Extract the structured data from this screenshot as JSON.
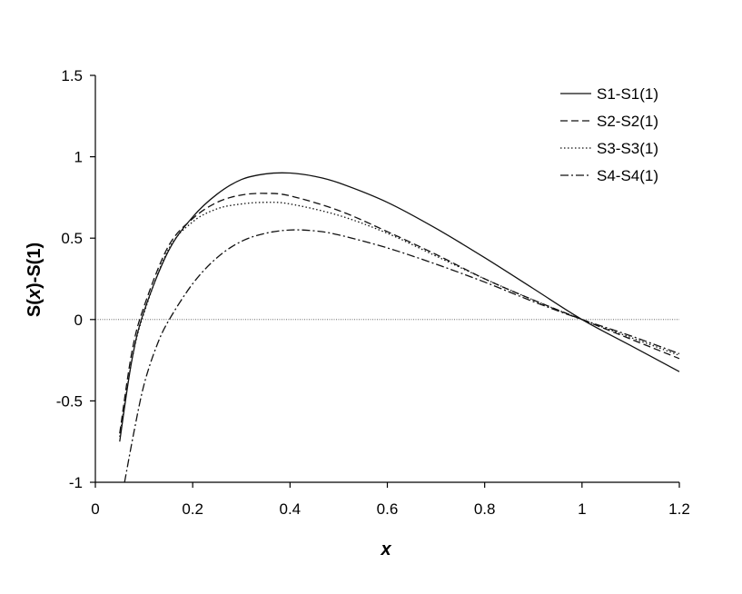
{
  "chart_data": {
    "type": "line",
    "title": "",
    "xlabel": "x",
    "ylabel_parts": [
      "S(",
      "x",
      ")-S(1)"
    ],
    "xlim": [
      0,
      1.2
    ],
    "ylim": [
      -1,
      1.5
    ],
    "x_ticks": [
      "0",
      "0.2",
      "0.4",
      "0.6",
      "0.8",
      "1",
      "1.2"
    ],
    "y_ticks": [
      "-1",
      "-0.5",
      "0",
      "0.5",
      "1",
      "1.5"
    ],
    "grid": false,
    "reference_line_y": 0,
    "legend_position": "top-right",
    "series": [
      {
        "name": "S1-S1(1)",
        "dash": "solid",
        "x": [
          0.05,
          0.075,
          0.1,
          0.15,
          0.2,
          0.25,
          0.3,
          0.35,
          0.4,
          0.45,
          0.5,
          0.6,
          0.7,
          0.8,
          0.9,
          1.0,
          1.1,
          1.2
        ],
        "y": [
          -0.75,
          -0.25,
          0.05,
          0.42,
          0.63,
          0.77,
          0.86,
          0.895,
          0.9,
          0.88,
          0.84,
          0.72,
          0.56,
          0.38,
          0.19,
          0.0,
          -0.16,
          -0.32
        ]
      },
      {
        "name": "S2-S2(1)",
        "dash": "dashed",
        "x": [
          0.05,
          0.075,
          0.1,
          0.15,
          0.2,
          0.25,
          0.3,
          0.35,
          0.4,
          0.5,
          0.6,
          0.7,
          0.8,
          0.9,
          1.0,
          1.1,
          1.2
        ],
        "y": [
          -0.7,
          -0.2,
          0.08,
          0.45,
          0.62,
          0.72,
          0.765,
          0.775,
          0.76,
          0.67,
          0.54,
          0.4,
          0.25,
          0.12,
          0.0,
          -0.12,
          -0.24
        ]
      },
      {
        "name": "S3-S3(1)",
        "dash": "dotted",
        "x": [
          0.05,
          0.075,
          0.1,
          0.15,
          0.2,
          0.25,
          0.3,
          0.35,
          0.4,
          0.5,
          0.6,
          0.7,
          0.8,
          0.9,
          1.0,
          1.1,
          1.2
        ],
        "y": [
          -0.72,
          -0.25,
          0.04,
          0.43,
          0.6,
          0.68,
          0.71,
          0.72,
          0.71,
          0.64,
          0.53,
          0.39,
          0.25,
          0.12,
          0.0,
          -0.11,
          -0.22
        ]
      },
      {
        "name": "S4-S4(1)",
        "dash": "dashdot",
        "x": [
          0.06,
          0.08,
          0.1,
          0.125,
          0.15,
          0.2,
          0.25,
          0.3,
          0.35,
          0.4,
          0.45,
          0.5,
          0.6,
          0.7,
          0.8,
          0.9,
          1.0,
          1.1,
          1.2
        ],
        "y": [
          -1.0,
          -0.68,
          -0.4,
          -0.17,
          -0.01,
          0.22,
          0.38,
          0.48,
          0.53,
          0.55,
          0.545,
          0.52,
          0.44,
          0.34,
          0.23,
          0.11,
          0.0,
          -0.1,
          -0.21
        ]
      }
    ]
  }
}
